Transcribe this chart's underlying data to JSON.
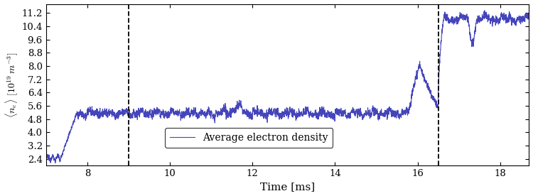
{
  "xlabel": "Time [ms]",
  "ylabel": "$\\langle n_e \\rangle$ $[10^{19}\\,m^{-3}]$",
  "xlim": [
    7.0,
    18.7
  ],
  "ylim": [
    2.0,
    11.75
  ],
  "yticks": [
    2.4,
    3.2,
    4.0,
    4.8,
    5.6,
    6.4,
    7.2,
    8.0,
    8.8,
    9.6,
    10.4,
    11.2
  ],
  "xticks": [
    8,
    10,
    12,
    14,
    16,
    18
  ],
  "vlines": [
    9.0,
    16.5
  ],
  "line_color": "#4444bb",
  "line_width": 0.8,
  "legend_label": "Average electron density",
  "seed": 12345
}
